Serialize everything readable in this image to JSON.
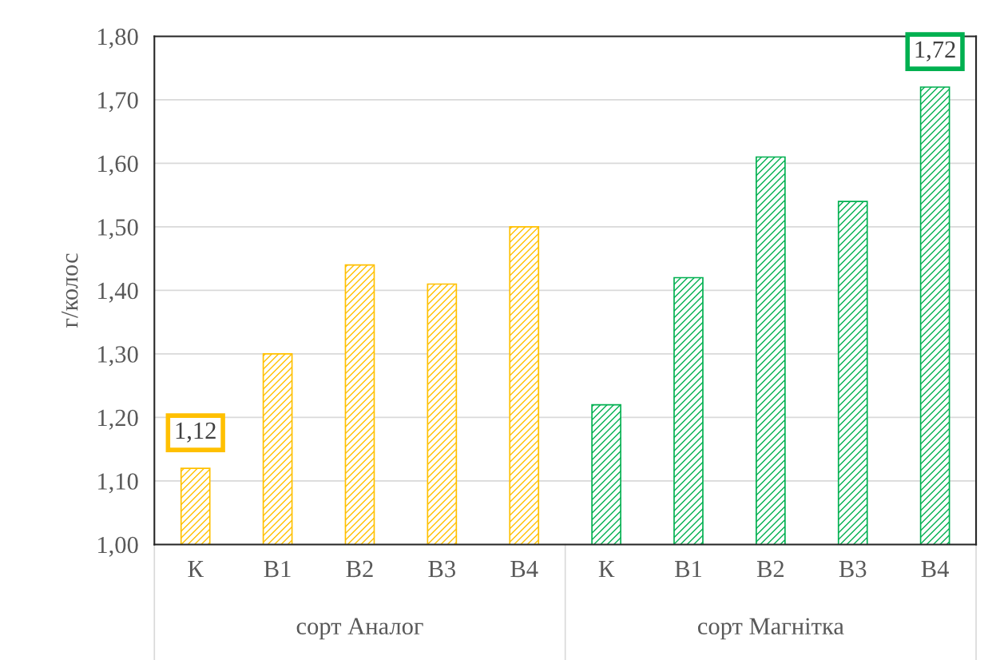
{
  "chart_data": {
    "type": "bar",
    "ylabel": "г/колос",
    "categories": [
      "К",
      "В1",
      "В2",
      "В3",
      "В4",
      "К",
      "В1",
      "В2",
      "В3",
      "В4"
    ],
    "values": [
      1.12,
      1.3,
      1.44,
      1.41,
      1.5,
      1.22,
      1.42,
      1.61,
      1.54,
      1.72
    ],
    "colors": [
      "#ffc000",
      "#ffc000",
      "#ffc000",
      "#ffc000",
      "#ffc000",
      "#00b050",
      "#00b050",
      "#00b050",
      "#00b050",
      "#00b050"
    ],
    "value_labels": [
      "1,12",
      null,
      null,
      null,
      null,
      null,
      null,
      null,
      null,
      "1,72"
    ],
    "annotations": [
      "сорт Аналог",
      "сорт Магнітка"
    ],
    "ylim": [
      1.0,
      1.8
    ],
    "yticks": [
      {
        "value": 1.0,
        "label": "1,00"
      },
      {
        "value": 1.1,
        "label": "1,10"
      },
      {
        "value": 1.2,
        "label": "1,20"
      },
      {
        "value": 1.3,
        "label": "1,30"
      },
      {
        "value": 1.4,
        "label": "1,40"
      },
      {
        "value": 1.5,
        "label": "1,50"
      },
      {
        "value": 1.6,
        "label": "1,60"
      },
      {
        "value": 1.7,
        "label": "1,70"
      },
      {
        "value": 1.8,
        "label": "1,80"
      }
    ],
    "grid": "y",
    "legend": false
  }
}
